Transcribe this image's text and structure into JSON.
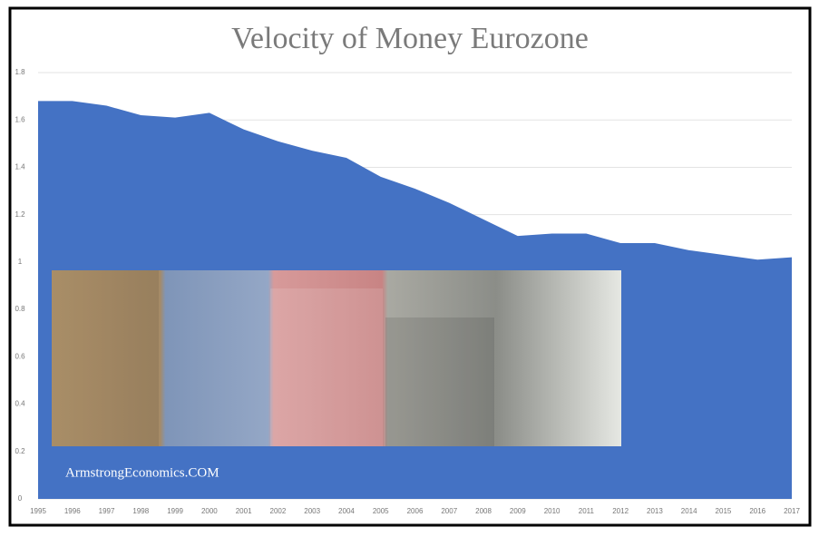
{
  "chart_data": {
    "type": "area",
    "title": "Velocity of Money Eurozone",
    "categories": [
      "1995",
      "1996",
      "1997",
      "1998",
      "1999",
      "2000",
      "2001",
      "2002",
      "2003",
      "2004",
      "2005",
      "2006",
      "2007",
      "2008",
      "2009",
      "2010",
      "2011",
      "2012",
      "2013",
      "2014",
      "2015",
      "2016",
      "2017"
    ],
    "values": [
      1.68,
      1.68,
      1.66,
      1.62,
      1.61,
      1.63,
      1.56,
      1.51,
      1.47,
      1.44,
      1.36,
      1.31,
      1.25,
      1.18,
      1.11,
      1.12,
      1.12,
      1.08,
      1.08,
      1.05,
      1.03,
      1.01,
      1.02
    ],
    "color": "#4472c4",
    "ylim": [
      0,
      1.8
    ],
    "yticks": [
      0,
      0.2,
      0.4,
      0.6,
      0.8,
      1,
      1.2,
      1.4,
      1.6,
      1.8
    ],
    "grid": true,
    "watermark": "ArmstrongEconomics.COM"
  }
}
